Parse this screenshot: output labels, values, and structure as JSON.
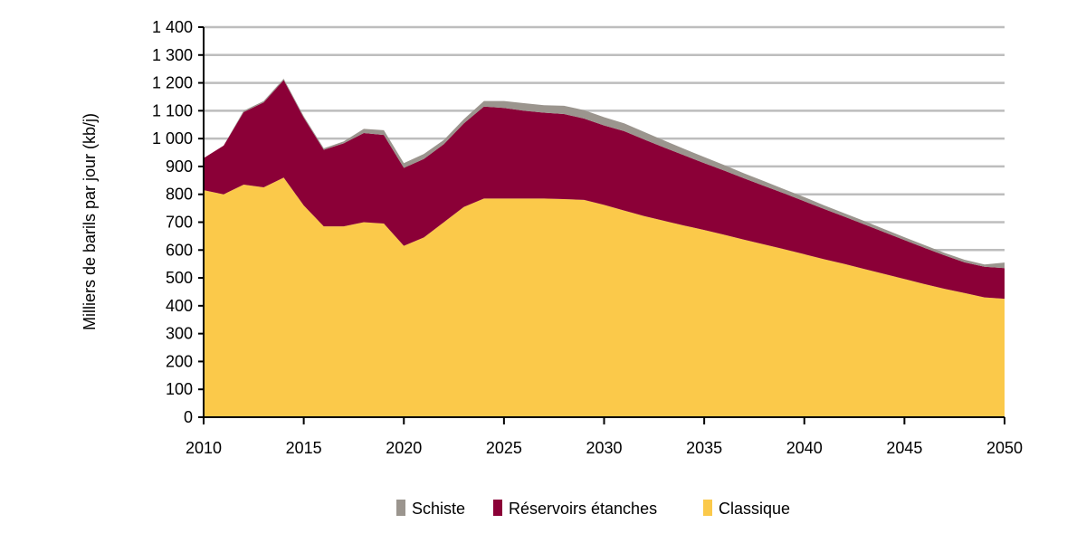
{
  "chart_data": {
    "type": "area",
    "stacked": true,
    "title": "",
    "xlabel": "",
    "ylabel": "Milliers de barils par jour (kb/j)",
    "xlim": [
      2010,
      2050
    ],
    "ylim": [
      0,
      1400
    ],
    "x_ticks": [
      "2010",
      "2015",
      "2020",
      "2025",
      "2030",
      "2035",
      "2040",
      "2045",
      "2050"
    ],
    "y_ticks": [
      "0",
      "100",
      "200",
      "300",
      "400",
      "500",
      "600",
      "700",
      "800",
      "900",
      "1 000",
      "1 100",
      "1 200",
      "1 300",
      "1 400"
    ],
    "grid": "horizontal",
    "legend_position": "bottom",
    "x": [
      2010,
      2011,
      2012,
      2013,
      2014,
      2015,
      2016,
      2017,
      2018,
      2019,
      2020,
      2021,
      2022,
      2023,
      2024,
      2025,
      2026,
      2027,
      2028,
      2029,
      2030,
      2031,
      2032,
      2033,
      2034,
      2035,
      2036,
      2037,
      2038,
      2039,
      2040,
      2041,
      2042,
      2043,
      2044,
      2045,
      2046,
      2047,
      2048,
      2049,
      2050
    ],
    "series": [
      {
        "name": "Classique",
        "color": "#FBC94A",
        "values": [
          815,
          800,
          835,
          825,
          860,
          760,
          685,
          685,
          700,
          695,
          615,
          645,
          700,
          755,
          785,
          785,
          785,
          785,
          783,
          780,
          762,
          742,
          722,
          705,
          688,
          672,
          655,
          637,
          620,
          603,
          585,
          567,
          550,
          532,
          514,
          496,
          478,
          461,
          446,
          430,
          425
        ]
      },
      {
        "name": "Réservoirs étanches",
        "color": "#8B0037",
        "values": [
          115,
          175,
          260,
          305,
          350,
          315,
          275,
          298,
          320,
          318,
          280,
          282,
          280,
          300,
          330,
          325,
          315,
          308,
          305,
          292,
          285,
          285,
          275,
          263,
          252,
          240,
          230,
          220,
          210,
          200,
          190,
          180,
          170,
          160,
          150,
          140,
          130,
          120,
          110,
          110,
          110
        ]
      },
      {
        "name": "Schiste",
        "color": "#9B958E",
        "values": [
          0,
          0,
          5,
          5,
          5,
          5,
          5,
          7,
          15,
          17,
          17,
          18,
          15,
          15,
          20,
          25,
          27,
          27,
          30,
          30,
          30,
          28,
          27,
          25,
          23,
          22,
          20,
          18,
          17,
          15,
          15,
          13,
          12,
          12,
          11,
          10,
          10,
          9,
          9,
          8,
          20
        ]
      }
    ]
  }
}
